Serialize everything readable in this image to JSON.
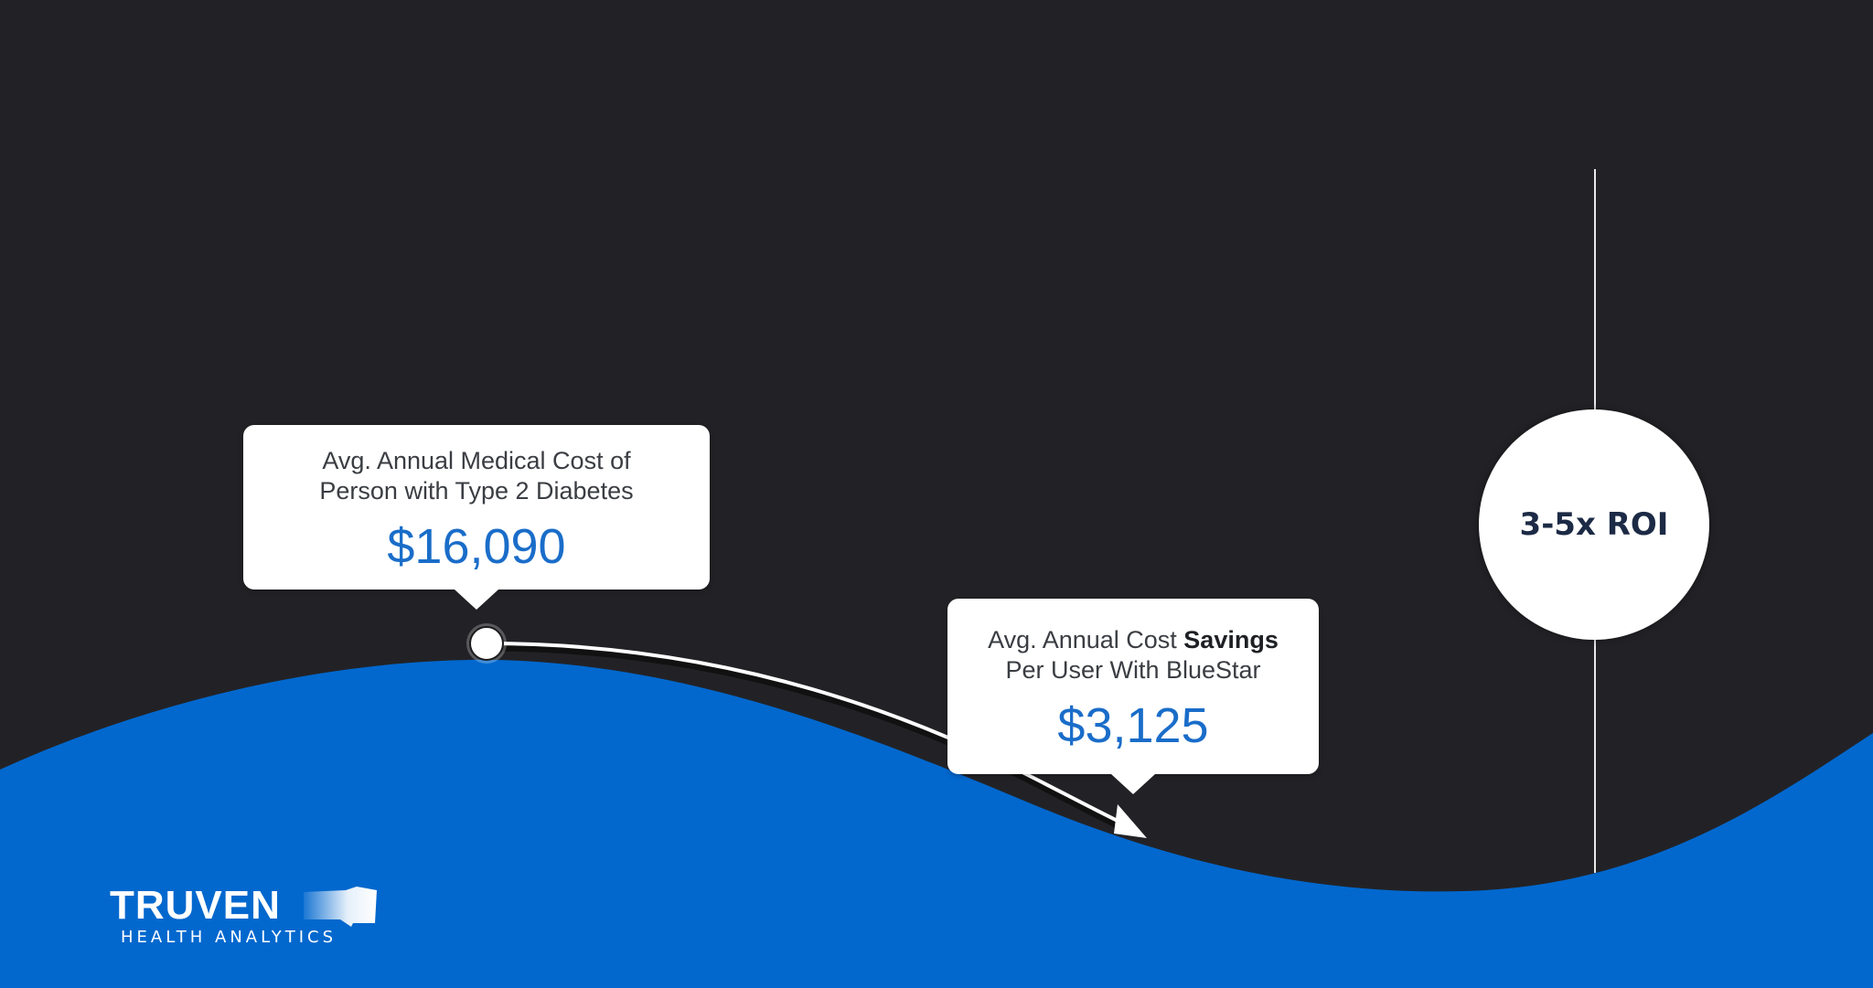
{
  "colors": {
    "background": "#222226",
    "wave": "#0268ce",
    "accent_amount": "#1a6dc9",
    "roi_text": "#1c2a45"
  },
  "cost_callout": {
    "line1": "Avg. Annual Medical Cost of",
    "line2": "Person with Type 2 Diabetes",
    "amount": "$16,090"
  },
  "savings_callout": {
    "line1_prefix": "Avg. Annual Cost ",
    "line1_bold": "Savings",
    "line2": "Per User With BlueStar",
    "amount": "$3,125"
  },
  "roi": {
    "label": "3-5x ROI"
  },
  "logo": {
    "wordmark": "TRUVEN",
    "tagline": "HEALTH ANALYTICS"
  },
  "icons": {
    "trend_arrow": "arrow-down-right-icon",
    "start_marker": "circle-marker-icon"
  }
}
